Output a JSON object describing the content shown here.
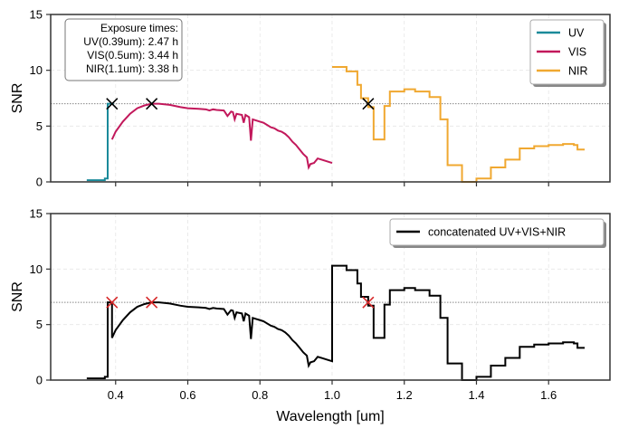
{
  "chart_data": [
    {
      "type": "line",
      "ylabel": "SNR",
      "xlabel": "",
      "xlim": [
        0.22,
        1.77
      ],
      "ylim": [
        0,
        15
      ],
      "xticks": [
        "0.4",
        "0.6",
        "0.8",
        "1.0",
        "1.2",
        "1.4",
        "1.6"
      ],
      "yticks": [
        "0",
        "5",
        "10",
        "15"
      ],
      "grid": true,
      "legend_placement": "top-right",
      "reference_line": 7,
      "annotation": {
        "title": "Exposure times:",
        "lines": [
          "UV(0.39um): 2.47 h",
          "VIS(0.5um): 3.44 h",
          "NIR(1.1um): 3.38 h"
        ]
      },
      "markers": [
        {
          "x": 0.39,
          "y": 7,
          "color": "#000000"
        },
        {
          "x": 0.5,
          "y": 7,
          "color": "#000000"
        },
        {
          "x": 1.1,
          "y": 7,
          "color": "#000000"
        }
      ],
      "series": [
        {
          "name": "UV",
          "color": "#1a8a9a",
          "step": true,
          "points": [
            [
              0.32,
              0.15
            ],
            [
              0.37,
              0.15
            ],
            [
              0.37,
              0.3
            ],
            [
              0.378,
              0.3
            ],
            [
              0.378,
              7.0
            ],
            [
              0.39,
              7.0
            ],
            [
              0.395,
              7.0
            ]
          ]
        },
        {
          "name": "VIS",
          "color": "#c2185b",
          "step": false,
          "points": [
            [
              0.39,
              3.8
            ],
            [
              0.4,
              4.5
            ],
            [
              0.42,
              5.4
            ],
            [
              0.44,
              6.1
            ],
            [
              0.46,
              6.6
            ],
            [
              0.48,
              6.85
            ],
            [
              0.5,
              7.0
            ],
            [
              0.52,
              7.0
            ],
            [
              0.55,
              6.9
            ],
            [
              0.58,
              6.7
            ],
            [
              0.6,
              6.6
            ],
            [
              0.63,
              6.55
            ],
            [
              0.65,
              6.5
            ],
            [
              0.66,
              6.4
            ],
            [
              0.67,
              6.5
            ],
            [
              0.68,
              6.45
            ],
            [
              0.7,
              6.4
            ],
            [
              0.71,
              5.9
            ],
            [
              0.72,
              6.3
            ],
            [
              0.725,
              6.25
            ],
            [
              0.73,
              5.6
            ],
            [
              0.735,
              6.1
            ],
            [
              0.75,
              6.0
            ],
            [
              0.755,
              5.3
            ],
            [
              0.76,
              6.0
            ],
            [
              0.77,
              5.8
            ],
            [
              0.775,
              3.7
            ],
            [
              0.78,
              5.6
            ],
            [
              0.79,
              5.5
            ],
            [
              0.8,
              5.4
            ],
            [
              0.81,
              5.3
            ],
            [
              0.82,
              5.1
            ],
            [
              0.83,
              4.9
            ],
            [
              0.84,
              4.8
            ],
            [
              0.85,
              4.6
            ],
            [
              0.86,
              4.5
            ],
            [
              0.87,
              4.3
            ],
            [
              0.88,
              4.0
            ],
            [
              0.89,
              3.6
            ],
            [
              0.9,
              3.3
            ],
            [
              0.91,
              2.9
            ],
            [
              0.92,
              2.5
            ],
            [
              0.93,
              2.2
            ],
            [
              0.935,
              1.3
            ],
            [
              0.94,
              1.6
            ],
            [
              0.95,
              1.7
            ],
            [
              0.96,
              2.1
            ],
            [
              0.97,
              2.0
            ],
            [
              0.98,
              1.9
            ],
            [
              0.99,
              1.8
            ],
            [
              1.0,
              1.7
            ]
          ]
        },
        {
          "name": "NIR",
          "color": "#f0a830",
          "step": true,
          "points": [
            [
              1.0,
              10.3
            ],
            [
              1.04,
              10.3
            ],
            [
              1.04,
              9.9
            ],
            [
              1.07,
              9.9
            ],
            [
              1.07,
              8.7
            ],
            [
              1.08,
              8.7
            ],
            [
              1.08,
              7.5
            ],
            [
              1.1,
              7.5
            ],
            [
              1.1,
              6.7
            ],
            [
              1.115,
              6.7
            ],
            [
              1.115,
              3.8
            ],
            [
              1.145,
              3.8
            ],
            [
              1.145,
              6.8
            ],
            [
              1.16,
              6.8
            ],
            [
              1.16,
              8.1
            ],
            [
              1.2,
              8.1
            ],
            [
              1.2,
              8.3
            ],
            [
              1.23,
              8.3
            ],
            [
              1.23,
              8.1
            ],
            [
              1.27,
              8.1
            ],
            [
              1.27,
              7.6
            ],
            [
              1.3,
              7.6
            ],
            [
              1.3,
              5.6
            ],
            [
              1.32,
              5.6
            ],
            [
              1.32,
              1.5
            ],
            [
              1.36,
              1.5
            ],
            [
              1.36,
              0.0
            ],
            [
              1.4,
              0.0
            ],
            [
              1.4,
              0.3
            ],
            [
              1.44,
              0.3
            ],
            [
              1.44,
              1.3
            ],
            [
              1.48,
              1.3
            ],
            [
              1.48,
              2.0
            ],
            [
              1.52,
              2.0
            ],
            [
              1.52,
              3.0
            ],
            [
              1.56,
              3.0
            ],
            [
              1.56,
              3.2
            ],
            [
              1.6,
              3.2
            ],
            [
              1.6,
              3.3
            ],
            [
              1.64,
              3.3
            ],
            [
              1.64,
              3.4
            ],
            [
              1.67,
              3.4
            ],
            [
              1.67,
              3.3
            ],
            [
              1.68,
              3.3
            ],
            [
              1.68,
              2.9
            ],
            [
              1.7,
              2.9
            ]
          ]
        }
      ]
    },
    {
      "type": "line",
      "ylabel": "SNR",
      "xlabel": "Wavelength [um]",
      "xlim": [
        0.22,
        1.77
      ],
      "ylim": [
        0,
        15
      ],
      "xticks": [
        "0.4",
        "0.6",
        "0.8",
        "1.0",
        "1.2",
        "1.4",
        "1.6"
      ],
      "yticks": [
        "0",
        "5",
        "10",
        "15"
      ],
      "grid": true,
      "legend_placement": "top-right",
      "reference_line": 7,
      "markers": [
        {
          "x": 0.39,
          "y": 7,
          "color": "#d62728"
        },
        {
          "x": 0.5,
          "y": 7,
          "color": "#d62728"
        },
        {
          "x": 1.1,
          "y": 7,
          "color": "#d62728"
        }
      ],
      "series": [
        {
          "name": "concatenated UV+VIS+NIR",
          "color": "#000000",
          "step": false,
          "points": [
            [
              0.32,
              0.15
            ],
            [
              0.37,
              0.15
            ],
            [
              0.37,
              0.3
            ],
            [
              0.378,
              0.3
            ],
            [
              0.378,
              7.0
            ],
            [
              0.39,
              7.0
            ],
            [
              0.39,
              3.8
            ],
            [
              0.4,
              4.5
            ],
            [
              0.42,
              5.4
            ],
            [
              0.44,
              6.1
            ],
            [
              0.46,
              6.6
            ],
            [
              0.48,
              6.85
            ],
            [
              0.5,
              7.0
            ],
            [
              0.52,
              7.0
            ],
            [
              0.55,
              6.9
            ],
            [
              0.58,
              6.7
            ],
            [
              0.6,
              6.6
            ],
            [
              0.63,
              6.55
            ],
            [
              0.65,
              6.5
            ],
            [
              0.66,
              6.4
            ],
            [
              0.67,
              6.5
            ],
            [
              0.68,
              6.45
            ],
            [
              0.7,
              6.4
            ],
            [
              0.71,
              5.9
            ],
            [
              0.72,
              6.3
            ],
            [
              0.725,
              6.25
            ],
            [
              0.73,
              5.6
            ],
            [
              0.735,
              6.1
            ],
            [
              0.75,
              6.0
            ],
            [
              0.755,
              5.3
            ],
            [
              0.76,
              6.0
            ],
            [
              0.77,
              5.8
            ],
            [
              0.775,
              3.7
            ],
            [
              0.78,
              5.6
            ],
            [
              0.79,
              5.5
            ],
            [
              0.8,
              5.4
            ],
            [
              0.81,
              5.3
            ],
            [
              0.82,
              5.1
            ],
            [
              0.83,
              4.9
            ],
            [
              0.84,
              4.8
            ],
            [
              0.85,
              4.6
            ],
            [
              0.86,
              4.5
            ],
            [
              0.87,
              4.3
            ],
            [
              0.88,
              4.0
            ],
            [
              0.89,
              3.6
            ],
            [
              0.9,
              3.3
            ],
            [
              0.91,
              2.9
            ],
            [
              0.92,
              2.5
            ],
            [
              0.93,
              2.2
            ],
            [
              0.935,
              1.3
            ],
            [
              0.94,
              1.6
            ],
            [
              0.95,
              1.7
            ],
            [
              0.96,
              2.1
            ],
            [
              0.97,
              2.0
            ],
            [
              0.98,
              1.9
            ],
            [
              0.99,
              1.8
            ],
            [
              1.0,
              1.7
            ],
            [
              1.0,
              10.3
            ],
            [
              1.04,
              10.3
            ],
            [
              1.04,
              9.9
            ],
            [
              1.07,
              9.9
            ],
            [
              1.07,
              8.7
            ],
            [
              1.08,
              8.7
            ],
            [
              1.08,
              7.5
            ],
            [
              1.1,
              7.5
            ],
            [
              1.1,
              6.7
            ],
            [
              1.115,
              6.7
            ],
            [
              1.115,
              3.8
            ],
            [
              1.145,
              3.8
            ],
            [
              1.145,
              6.8
            ],
            [
              1.16,
              6.8
            ],
            [
              1.16,
              8.1
            ],
            [
              1.2,
              8.1
            ],
            [
              1.2,
              8.3
            ],
            [
              1.23,
              8.3
            ],
            [
              1.23,
              8.1
            ],
            [
              1.27,
              8.1
            ],
            [
              1.27,
              7.6
            ],
            [
              1.3,
              7.6
            ],
            [
              1.3,
              5.6
            ],
            [
              1.32,
              5.6
            ],
            [
              1.32,
              1.5
            ],
            [
              1.36,
              1.5
            ],
            [
              1.36,
              0.0
            ],
            [
              1.4,
              0.0
            ],
            [
              1.4,
              0.3
            ],
            [
              1.44,
              0.3
            ],
            [
              1.44,
              1.3
            ],
            [
              1.48,
              1.3
            ],
            [
              1.48,
              2.0
            ],
            [
              1.52,
              2.0
            ],
            [
              1.52,
              3.0
            ],
            [
              1.56,
              3.0
            ],
            [
              1.56,
              3.2
            ],
            [
              1.6,
              3.2
            ],
            [
              1.6,
              3.3
            ],
            [
              1.64,
              3.3
            ],
            [
              1.64,
              3.4
            ],
            [
              1.67,
              3.4
            ],
            [
              1.67,
              3.3
            ],
            [
              1.68,
              3.3
            ],
            [
              1.68,
              2.9
            ],
            [
              1.7,
              2.9
            ]
          ]
        }
      ]
    }
  ]
}
